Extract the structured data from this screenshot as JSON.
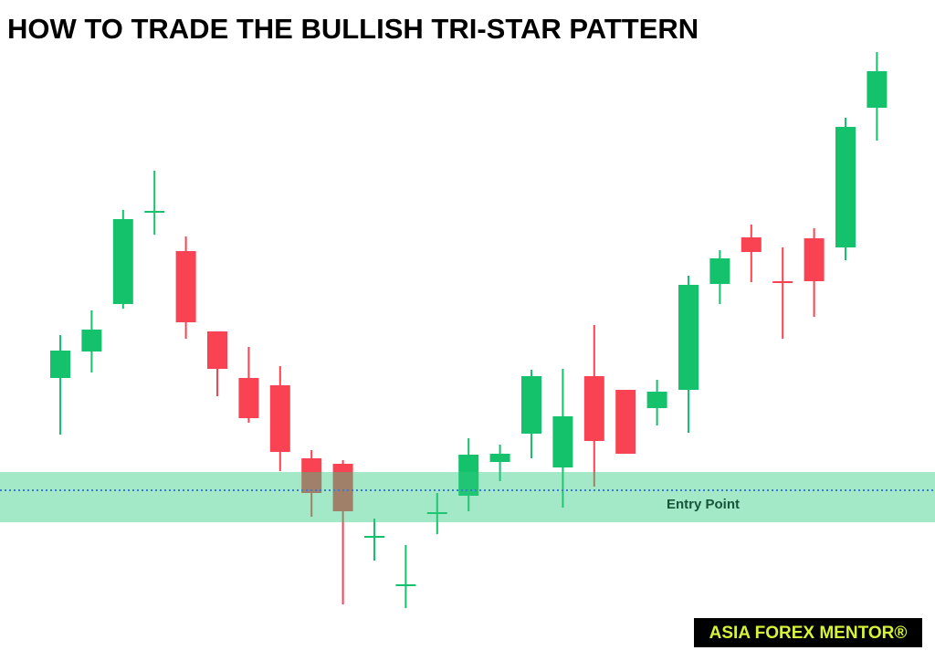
{
  "chart_data": {
    "type": "candlestick",
    "title": "HOW TO TRADE THE BULLISH TRI-STAR PATTERN",
    "open": [
      310,
      339,
      391,
      492,
      449,
      361,
      310,
      302,
      222,
      216,
      136,
      83,
      162,
      181,
      218,
      249,
      212,
      312,
      297,
      277,
      297,
      413,
      464,
      416,
      463,
      453,
      606
    ],
    "high": [
      357,
      384,
      494,
      537,
      465,
      361,
      344,
      323,
      231,
      220,
      156,
      127,
      184,
      244,
      237,
      319,
      320,
      368,
      297,
      308,
      422,
      450,
      478,
      453,
      474,
      595,
      667
    ],
    "low": [
      248,
      316,
      386,
      467,
      353,
      290,
      261,
      208,
      158,
      62,
      110,
      58,
      139,
      164,
      197,
      222,
      168,
      191,
      227,
      258,
      250,
      391,
      415,
      353,
      377,
      439,
      570
    ],
    "close": [
      340,
      363,
      484,
      493,
      371,
      320,
      266,
      229,
      184,
      164,
      137,
      84,
      163,
      226,
      227,
      312,
      268,
      241,
      227,
      295,
      412,
      441,
      448,
      415,
      416,
      585,
      646
    ],
    "up_color": "#13c26b",
    "down_color": "#f94352",
    "ylim": [
      0,
      700
    ],
    "entry": {
      "label": "Entry Point",
      "value": 187,
      "band": [
        152,
        207
      ],
      "color": "#3a7bd5"
    }
  },
  "brand": "ASIA FOREX MENTOR®"
}
